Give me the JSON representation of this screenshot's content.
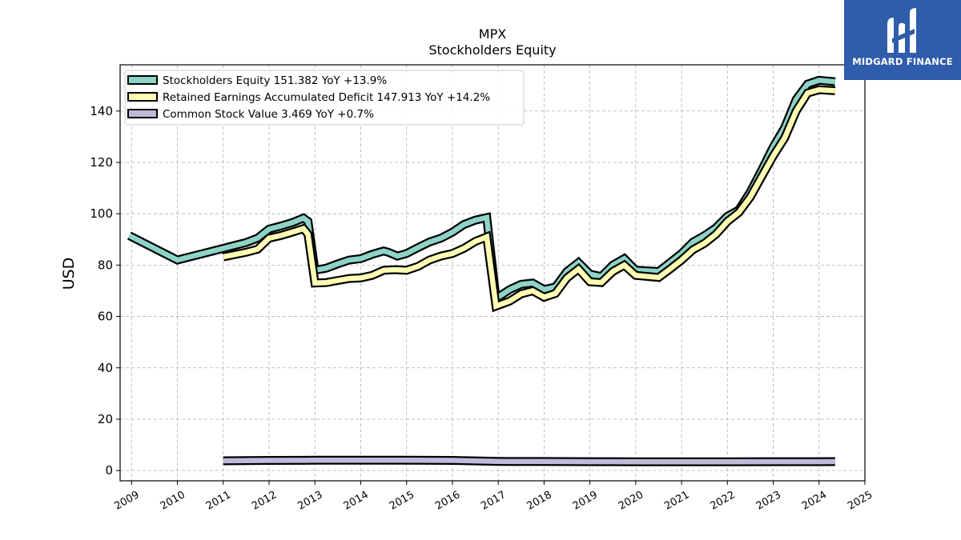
{
  "logo": {
    "brand": "MIDGARD FINANCE"
  },
  "colors": {
    "equity": "#8dd3c7",
    "retained": "#ffffb3",
    "common": "#bebada",
    "outline": "#000000",
    "logo_bg": "#2f5cab"
  },
  "chart_data": {
    "type": "line",
    "title": "MPX",
    "subtitle": "Stockholders  Equity",
    "ylabel": "USD",
    "xlabel": "",
    "ylim": [
      -4,
      158
    ],
    "xlim": [
      2008.75,
      2025.0
    ],
    "yticks": [
      0,
      20,
      40,
      60,
      80,
      100,
      120,
      140
    ],
    "xticks": [
      "2009",
      "2010",
      "2011",
      "2012",
      "2013",
      "2014",
      "2015",
      "2016",
      "2017",
      "2018",
      "2019",
      "2020",
      "2021",
      "2022",
      "2023",
      "2024",
      "2025"
    ],
    "grid": true,
    "legend_position": "top-left",
    "series": [
      {
        "name": "Stockholders Equity  151.382 YoY +13.9%",
        "color": "#8dd3c7",
        "points": [
          [
            2008.95,
            91.5
          ],
          [
            2010.0,
            82.0
          ],
          [
            2011.0,
            86.5
          ],
          [
            2011.5,
            88.8
          ],
          [
            2011.75,
            90.5
          ],
          [
            2012.0,
            94.0
          ],
          [
            2012.25,
            95.2
          ],
          [
            2012.5,
            96.5
          ],
          [
            2012.75,
            98.3
          ],
          [
            2012.85,
            97.0
          ],
          [
            2013.0,
            78.0
          ],
          [
            2013.25,
            78.8
          ],
          [
            2013.5,
            80.5
          ],
          [
            2013.75,
            82.0
          ],
          [
            2014.0,
            82.5
          ],
          [
            2014.25,
            84.2
          ],
          [
            2014.5,
            85.5
          ],
          [
            2014.6,
            85.0
          ],
          [
            2014.8,
            83.5
          ],
          [
            2015.0,
            84.5
          ],
          [
            2015.25,
            86.8
          ],
          [
            2015.5,
            89.0
          ],
          [
            2015.75,
            90.5
          ],
          [
            2016.0,
            92.8
          ],
          [
            2016.25,
            95.8
          ],
          [
            2016.5,
            97.5
          ],
          [
            2016.75,
            98.5
          ],
          [
            2016.95,
            67.0
          ],
          [
            2017.25,
            70.5
          ],
          [
            2017.5,
            72.5
          ],
          [
            2017.75,
            73.0
          ],
          [
            2018.0,
            70.5
          ],
          [
            2018.25,
            71.5
          ],
          [
            2018.5,
            77.5
          ],
          [
            2018.75,
            81.0
          ],
          [
            2019.0,
            76.5
          ],
          [
            2019.25,
            75.5
          ],
          [
            2019.5,
            80.0
          ],
          [
            2019.75,
            82.5
          ],
          [
            2020.0,
            78.0
          ],
          [
            2020.5,
            77.5
          ],
          [
            2020.75,
            81.0
          ],
          [
            2021.0,
            84.5
          ],
          [
            2021.25,
            89.0
          ],
          [
            2021.5,
            91.5
          ],
          [
            2021.75,
            94.5
          ],
          [
            2022.0,
            99.0
          ],
          [
            2022.25,
            101.5
          ],
          [
            2022.5,
            108.5
          ],
          [
            2022.75,
            117.0
          ],
          [
            2023.0,
            126.0
          ],
          [
            2023.25,
            133.5
          ],
          [
            2023.5,
            144.5
          ],
          [
            2023.75,
            150.5
          ],
          [
            2024.0,
            152.0
          ],
          [
            2024.35,
            151.4
          ]
        ]
      },
      {
        "name": "Retained Earnings Accumulated Deficit  147.913 YoY +14.2%",
        "color": "#ffffb3",
        "points": [
          [
            2011.0,
            83.2
          ],
          [
            2011.5,
            85.0
          ],
          [
            2011.75,
            86.2
          ],
          [
            2012.0,
            90.5
          ],
          [
            2012.25,
            91.5
          ],
          [
            2012.5,
            92.8
          ],
          [
            2012.75,
            94.2
          ],
          [
            2012.85,
            92.0
          ],
          [
            2013.0,
            73.0
          ],
          [
            2013.25,
            73.2
          ],
          [
            2013.5,
            74.0
          ],
          [
            2013.75,
            74.8
          ],
          [
            2014.0,
            75.0
          ],
          [
            2014.25,
            76.0
          ],
          [
            2014.5,
            78.0
          ],
          [
            2014.75,
            78.2
          ],
          [
            2015.0,
            78.0
          ],
          [
            2015.25,
            79.5
          ],
          [
            2015.5,
            82.0
          ],
          [
            2015.75,
            83.5
          ],
          [
            2016.0,
            84.5
          ],
          [
            2016.25,
            86.5
          ],
          [
            2016.5,
            89.2
          ],
          [
            2016.75,
            91.0
          ],
          [
            2016.95,
            64.0
          ],
          [
            2017.25,
            66.0
          ],
          [
            2017.5,
            68.8
          ],
          [
            2017.75,
            70.0
          ],
          [
            2018.0,
            67.5
          ],
          [
            2018.25,
            69.0
          ],
          [
            2018.5,
            75.0
          ],
          [
            2018.75,
            78.5
          ],
          [
            2019.0,
            73.5
          ],
          [
            2019.25,
            73.2
          ],
          [
            2019.5,
            77.5
          ],
          [
            2019.75,
            80.0
          ],
          [
            2020.0,
            76.0
          ],
          [
            2020.5,
            75.2
          ],
          [
            2020.75,
            78.5
          ],
          [
            2021.0,
            82.0
          ],
          [
            2021.25,
            86.0
          ],
          [
            2021.5,
            88.5
          ],
          [
            2021.75,
            92.0
          ],
          [
            2022.0,
            97.0
          ],
          [
            2022.25,
            100.5
          ],
          [
            2022.5,
            106.5
          ],
          [
            2022.75,
            114.5
          ],
          [
            2023.0,
            122.5
          ],
          [
            2023.25,
            129.5
          ],
          [
            2023.5,
            140.0
          ],
          [
            2023.75,
            147.0
          ],
          [
            2024.0,
            148.3
          ],
          [
            2024.35,
            147.9
          ]
        ]
      },
      {
        "name": "Common Stock Value  3.469 YoY +0.7%",
        "color": "#bebada",
        "points": [
          [
            2011.0,
            3.8
          ],
          [
            2012.0,
            3.95
          ],
          [
            2013.0,
            4.0
          ],
          [
            2014.0,
            4.0
          ],
          [
            2015.0,
            4.0
          ],
          [
            2016.0,
            3.95
          ],
          [
            2017.0,
            3.55
          ],
          [
            2018.0,
            3.5
          ],
          [
            2019.0,
            3.45
          ],
          [
            2020.0,
            3.4
          ],
          [
            2021.0,
            3.4
          ],
          [
            2022.0,
            3.4
          ],
          [
            2023.0,
            3.45
          ],
          [
            2024.0,
            3.45
          ],
          [
            2024.35,
            3.47
          ]
        ]
      }
    ]
  }
}
